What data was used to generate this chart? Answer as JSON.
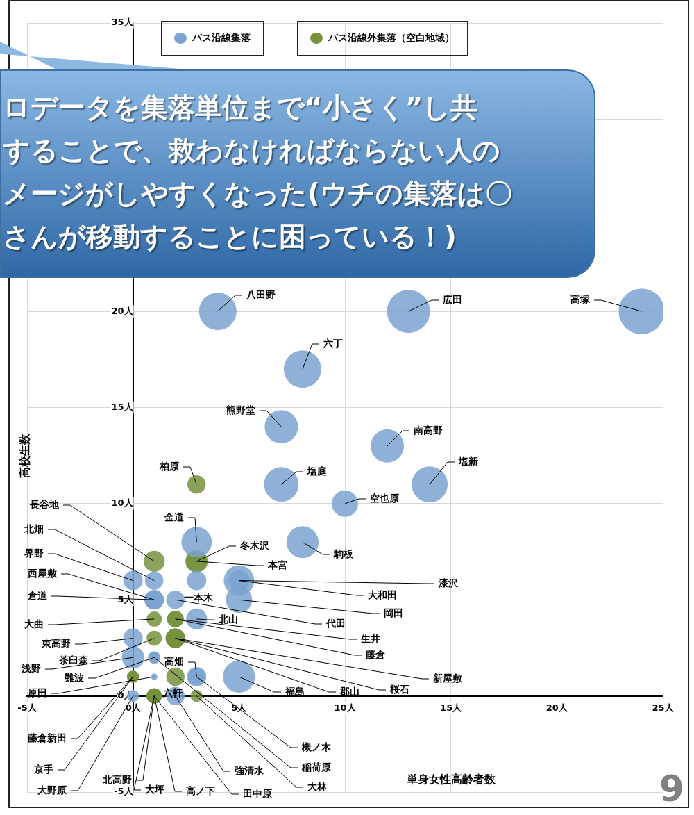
{
  "chart_data": {
    "type": "bubble",
    "xlabel": "単身女性高齢者数",
    "ylabel": "高校生数",
    "xlim": [
      -5,
      25
    ],
    "ylim": [
      -5,
      35
    ],
    "xticks": [
      {
        "value": -5,
        "label": "-5人"
      },
      {
        "value": 0,
        "label": "0人"
      },
      {
        "value": 5,
        "label": "5人"
      },
      {
        "value": 10,
        "label": "10人"
      },
      {
        "value": 15,
        "label": "15人"
      },
      {
        "value": 20,
        "label": "20人"
      },
      {
        "value": 25,
        "label": "25人"
      }
    ],
    "yticks": [
      {
        "value": -5,
        "label": "-5人"
      },
      {
        "value": 0,
        "label": "0人"
      },
      {
        "value": 5,
        "label": "5人"
      },
      {
        "value": 10,
        "label": "10人"
      },
      {
        "value": 15,
        "label": "15人"
      },
      {
        "value": 20,
        "label": "20人"
      },
      {
        "value": 25,
        "label": null
      },
      {
        "value": 30,
        "label": null
      },
      {
        "value": 35,
        "label": "35人"
      }
    ],
    "grid": true,
    "legend": "top",
    "series": [
      {
        "name": "バス沿線集落",
        "color": "#7ba2d0",
        "x": [
          4,
          13,
          24,
          8,
          7,
          12,
          7,
          14,
          10,
          3,
          8,
          0,
          1,
          3,
          5,
          5,
          1,
          1,
          2,
          5,
          3,
          0,
          0,
          1,
          1,
          1,
          3,
          3,
          5,
          0,
          2
        ],
        "values": [
          20,
          20,
          20,
          17,
          14,
          13,
          11,
          11,
          10,
          8,
          8,
          6,
          6,
          6,
          6,
          6,
          5,
          5,
          5,
          5,
          4,
          3,
          2,
          2,
          2,
          1,
          1,
          1,
          1,
          0,
          0
        ],
        "sizes": [
          0.67,
          0.88,
          1,
          0.67,
          0.53,
          0.53,
          0.57,
          0.62,
          0.33,
          0.44,
          0.49,
          0.18,
          0.16,
          0.18,
          0.21,
          0.44,
          0.18,
          0.18,
          0.16,
          0.33,
          0.21,
          0.18,
          0.24,
          0.07,
          0.07,
          0.02,
          0.18,
          0.13,
          0.49,
          0.07,
          0.16
        ]
      },
      {
        "name": "バス沿線外集落（空白地域）",
        "color": "#76923c",
        "x": [
          3,
          1,
          3,
          3,
          1,
          2,
          2,
          1,
          2,
          2,
          2,
          0,
          0,
          2,
          1,
          1,
          1,
          1,
          3
        ],
        "values": [
          11,
          7,
          7,
          7,
          4,
          4,
          4,
          3,
          3,
          3,
          3,
          1,
          1,
          1,
          0,
          0,
          0,
          0,
          0
        ],
        "sizes": [
          0.16,
          0.21,
          0.21,
          0.24,
          0.11,
          0.13,
          0.13,
          0.11,
          0.18,
          0.18,
          0.18,
          0.07,
          0.07,
          0.16,
          0.11,
          0.11,
          0.11,
          0.11,
          0.07
        ]
      }
    ],
    "annotations": [
      {
        "text": "八田野",
        "x": 4,
        "y": 20
      },
      {
        "text": "広田",
        "x": 13,
        "y": 20
      },
      {
        "text": "高塚",
        "x": 24,
        "y": 20
      },
      {
        "text": "六丁",
        "x": 8,
        "y": 17
      },
      {
        "text": "熊野堂",
        "x": 7,
        "y": 14
      },
      {
        "text": "南高野",
        "x": 12,
        "y": 13
      },
      {
        "text": "塩庭",
        "x": 7,
        "y": 11
      },
      {
        "text": "塩新",
        "x": 14,
        "y": 11
      },
      {
        "text": "空也原",
        "x": 10,
        "y": 10
      },
      {
        "text": "金道",
        "x": 3,
        "y": 8
      },
      {
        "text": "駒板",
        "x": 8,
        "y": 8
      },
      {
        "text": "界野",
        "x": 0,
        "y": 6
      },
      {
        "text": "北畑",
        "x": 1,
        "y": 6
      },
      {
        "text": "一本木",
        "x": 3,
        "y": 6
      },
      {
        "text": "大和田",
        "x": 5,
        "y": 6
      },
      {
        "text": "漆沢",
        "x": 5,
        "y": 6
      },
      {
        "text": "西屋敷",
        "x": 1,
        "y": 5
      },
      {
        "text": "倉道",
        "x": 1,
        "y": 5
      },
      {
        "text": "代田",
        "x": 2,
        "y": 5
      },
      {
        "text": "岡田",
        "x": 5,
        "y": 5
      },
      {
        "text": "北山",
        "x": 3,
        "y": 4
      },
      {
        "text": "東高野",
        "x": 0,
        "y": 3
      },
      {
        "text": "浅野",
        "x": 0,
        "y": 2
      },
      {
        "text": "難波",
        "x": 1,
        "y": 2
      },
      {
        "text": "稲荷原",
        "x": 1,
        "y": 2
      },
      {
        "text": "原田",
        "x": 1,
        "y": 1
      },
      {
        "text": "高畑",
        "x": 3,
        "y": 1
      },
      {
        "text": "槻ノ木",
        "x": 3,
        "y": 1
      },
      {
        "text": "福島",
        "x": 5,
        "y": 1
      },
      {
        "text": "大野原",
        "x": 0,
        "y": 0
      },
      {
        "text": "強清水",
        "x": 2,
        "y": 0
      },
      {
        "text": "柏原",
        "x": 3,
        "y": 11
      },
      {
        "text": "長谷地",
        "x": 1,
        "y": 7
      },
      {
        "text": "冬木沢",
        "x": 3,
        "y": 7
      },
      {
        "text": "本宮",
        "x": 3,
        "y": 7
      },
      {
        "text": "大曲",
        "x": 1,
        "y": 4
      },
      {
        "text": "生井",
        "x": 2,
        "y": 4
      },
      {
        "text": "藤倉",
        "x": 2,
        "y": 4
      },
      {
        "text": "茶臼森",
        "x": 1,
        "y": 3
      },
      {
        "text": "新屋敷",
        "x": 2,
        "y": 3
      },
      {
        "text": "桜石",
        "x": 2,
        "y": 3
      },
      {
        "text": "郡山",
        "x": 2,
        "y": 3
      },
      {
        "text": "京手",
        "x": 0,
        "y": 1
      },
      {
        "text": "藤倉新田",
        "x": 0,
        "y": 1
      },
      {
        "text": "六軒",
        "x": 2,
        "y": 1
      },
      {
        "text": "北高野",
        "x": 1,
        "y": 0
      },
      {
        "text": "大坪",
        "x": 1,
        "y": 0
      },
      {
        "text": "高ノ下",
        "x": 1,
        "y": 0
      },
      {
        "text": "田中原",
        "x": 1,
        "y": 0
      },
      {
        "text": "大林",
        "x": 3,
        "y": 0
      },
      "ロデータを集落単位まで“小さく”し共することで、救わなければならない人のメージがしやすくなった(ウチの集落は〇さんが移動することに困っている！)",
      "9"
    ]
  }
}
